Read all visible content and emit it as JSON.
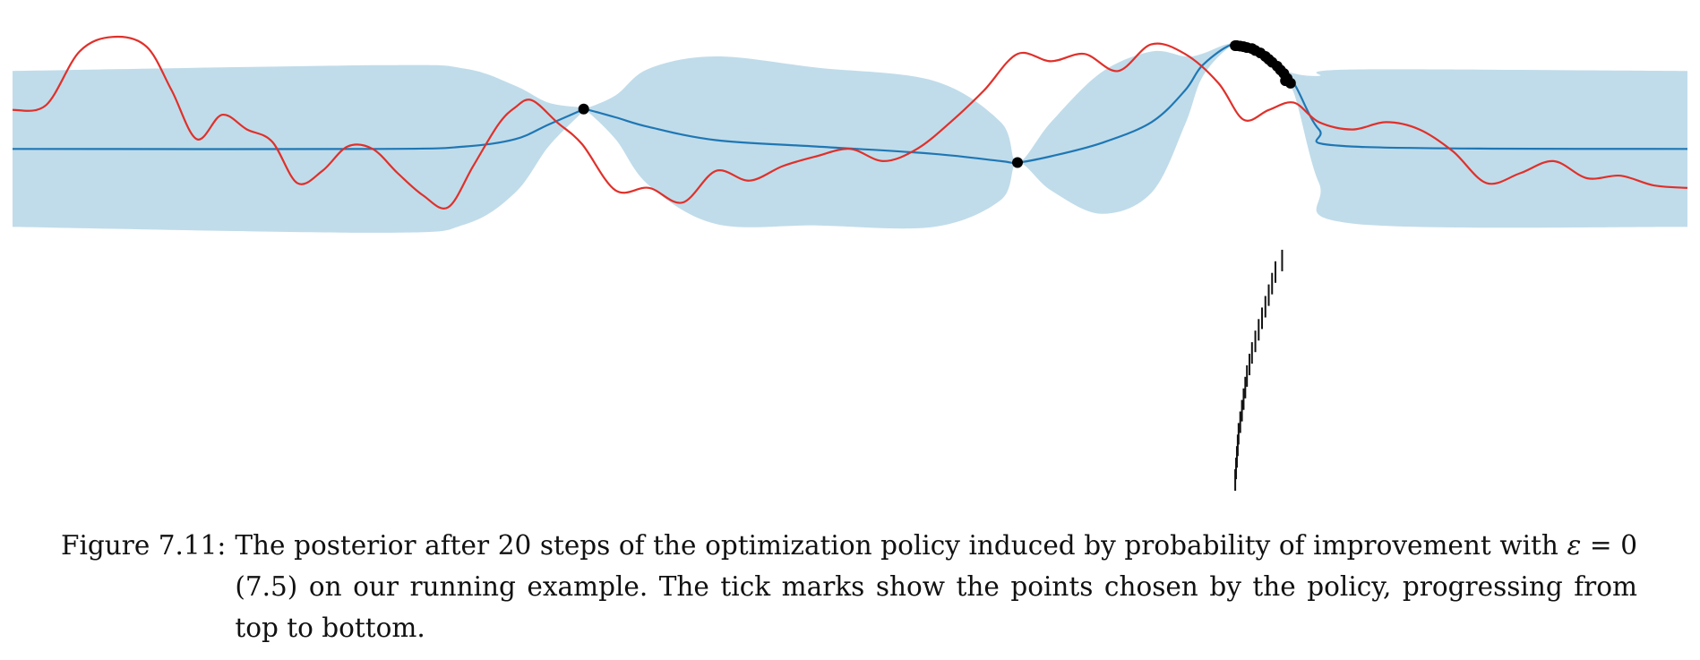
{
  "figure": {
    "label": "Figure 7.11:",
    "caption_parts": [
      "The posterior after 20 steps of the optimization policy induced by probability of improvement with ",
      "ε",
      " = 0 (7.5) on our running example. The tick marks show the points chosen by the policy, progressing from top to bottom."
    ]
  },
  "colors": {
    "band": "#c0dcea",
    "mean": "#1f77b4",
    "objective": "#e0302a",
    "points": "#000000"
  },
  "chart_data": {
    "type": "line",
    "x_range": [
      0,
      1
    ],
    "y_range": [
      -2.2,
      2.8
    ],
    "mean": {
      "x": [
        0,
        0.22,
        0.27,
        0.3,
        0.32,
        0.34,
        0.3415,
        0.36,
        0.38,
        0.42,
        0.48,
        0.55,
        0.59,
        0.6,
        0.62,
        0.65,
        0.68,
        0.7,
        0.71,
        0.725,
        0.735,
        0.745,
        0.755,
        0.765,
        0.78,
        0.8,
        1
      ],
      "y": [
        0,
        0,
        0.05,
        0.2,
        0.5,
        0.8,
        0.82,
        0.65,
        0.45,
        0.18,
        0.05,
        -0.1,
        -0.25,
        -0.28,
        -0.15,
        0.12,
        0.55,
        1.2,
        1.7,
        2.1,
        2.15,
        1.9,
        1.65,
        1.35,
        0.4,
        0.05,
        0
      ],
      "sd_shape": [
        1.6,
        1.72,
        1.6,
        1.1,
        0.45,
        0.05,
        0,
        0.45,
        1.2,
        1.72,
        1.62,
        1.5,
        0.8,
        0,
        0.7,
        1.45,
        1.45,
        0.7,
        0.25,
        0.05,
        0,
        0.05,
        0.05,
        0.2,
        1.1,
        1.58,
        1.6
      ]
    },
    "objective": {
      "x": [
        0,
        0.02,
        0.04,
        0.06,
        0.08,
        0.095,
        0.11,
        0.125,
        0.14,
        0.155,
        0.17,
        0.185,
        0.2,
        0.215,
        0.23,
        0.245,
        0.26,
        0.275,
        0.29,
        0.3,
        0.31,
        0.325,
        0.34,
        0.36,
        0.38,
        0.4,
        0.42,
        0.44,
        0.46,
        0.48,
        0.5,
        0.52,
        0.54,
        0.56,
        0.58,
        0.6,
        0.62,
        0.64,
        0.66,
        0.68,
        0.7,
        0.72,
        0.735,
        0.75,
        0.765,
        0.78,
        0.8,
        0.82,
        0.84,
        0.86,
        0.88,
        0.9,
        0.92,
        0.94,
        0.96,
        0.98,
        1
      ],
      "y": [
        0.8,
        0.9,
        2.0,
        2.3,
        2.1,
        1.2,
        0.2,
        0.7,
        0.4,
        0.15,
        -0.7,
        -0.45,
        0.05,
        0.0,
        -0.5,
        -0.95,
        -1.2,
        -0.35,
        0.5,
        0.85,
        1.0,
        0.55,
        0.1,
        -0.85,
        -0.8,
        -1.1,
        -0.45,
        -0.65,
        -0.35,
        -0.15,
        0.0,
        -0.25,
        0.0,
        0.55,
        1.2,
        1.95,
        1.8,
        1.95,
        1.6,
        2.15,
        1.95,
        1.35,
        0.6,
        0.8,
        0.95,
        0.55,
        0.4,
        0.55,
        0.4,
        -0.05,
        -0.7,
        -0.5,
        -0.25,
        -0.6,
        -0.55,
        -0.75,
        -0.8
      ]
    },
    "observations": {
      "x": [
        0.341,
        0.6,
        0.73,
        0.731,
        0.733,
        0.735,
        0.737,
        0.74,
        0.742,
        0.745,
        0.748,
        0.75,
        0.752,
        0.755,
        0.757,
        0.759,
        0.761,
        0.763,
        0.76
      ],
      "y": [
        0.82,
        -0.28,
        2.12,
        2.12,
        2.11,
        2.1,
        2.08,
        2.06,
        2.02,
        1.97,
        1.9,
        1.84,
        1.78,
        1.7,
        1.62,
        1.55,
        1.45,
        1.35,
        1.4
      ]
    },
    "policy_points_in_order": [
      0.73,
      0.7305,
      0.731,
      0.7315,
      0.732,
      0.733,
      0.734,
      0.735,
      0.736,
      0.737,
      0.7385,
      0.74,
      0.742,
      0.744,
      0.746,
      0.748,
      0.75,
      0.752,
      0.754,
      0.758
    ]
  }
}
